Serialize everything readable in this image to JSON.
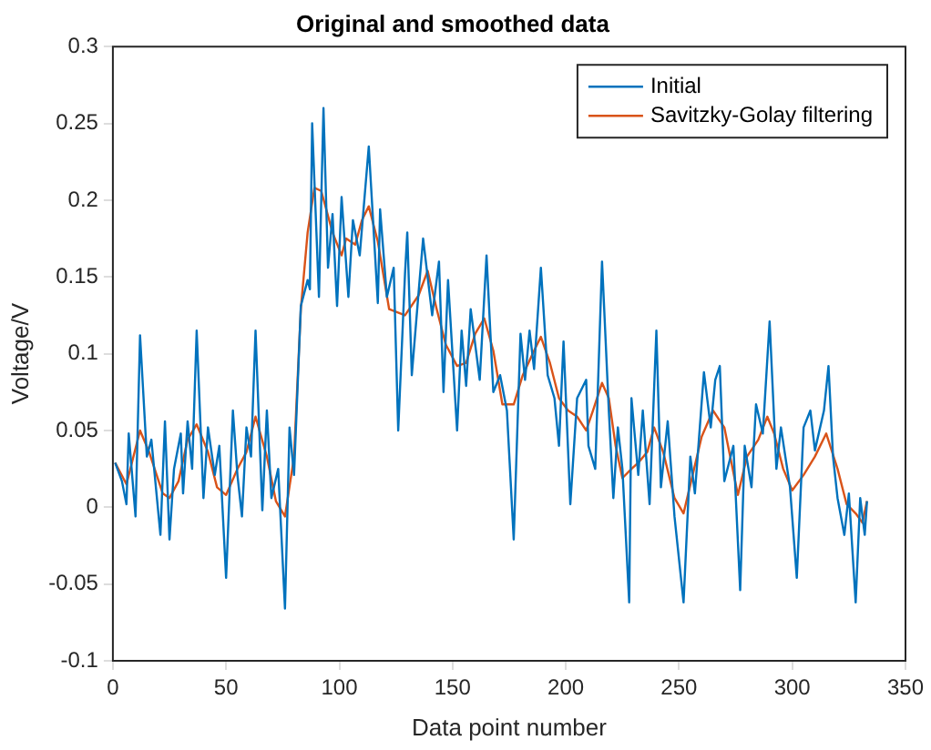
{
  "chart_data": {
    "type": "line",
    "title": "Original and smoothed data",
    "xlabel": "Data point number",
    "ylabel": "Voltage/V",
    "xlim": [
      0,
      350
    ],
    "xticks": [
      0,
      50,
      100,
      150,
      200,
      250,
      300,
      350
    ],
    "ylim": [
      -0.1,
      0.3
    ],
    "yticks": [
      -0.1,
      -0.05,
      0,
      0.05,
      0.1,
      0.15,
      0.2,
      0.25,
      0.3
    ],
    "grid": false,
    "legend": "top right",
    "marker": "none",
    "line_style": "solid",
    "series": [
      {
        "name": "Initial",
        "color": "#0072bd",
        "x": [
          1,
          4,
          6,
          7,
          10,
          12,
          15,
          17,
          21,
          23,
          25,
          27,
          30,
          31,
          33,
          35,
          37,
          40,
          42,
          45,
          47,
          50,
          53,
          55,
          57,
          59,
          61,
          63,
          66,
          68,
          70,
          73,
          76,
          78,
          80,
          83,
          86,
          87,
          88,
          91,
          93,
          95,
          97,
          99,
          101,
          104,
          106,
          109,
          113,
          117,
          118,
          121,
          124,
          126,
          129,
          130,
          132,
          135,
          137,
          141,
          144,
          146,
          148,
          152,
          154,
          156,
          158,
          162,
          165,
          168,
          171,
          174,
          177,
          180,
          182,
          184,
          186,
          189,
          192,
          195,
          197,
          199,
          202,
          205,
          209,
          210,
          213,
          216,
          219,
          221,
          223,
          225,
          228,
          229,
          232,
          234,
          237,
          240,
          242,
          245,
          248,
          252,
          255,
          257,
          261,
          264,
          266,
          268,
          270,
          274,
          277,
          279,
          282,
          284,
          287,
          290,
          293,
          295,
          299,
          302,
          305,
          308,
          310,
          314,
          316,
          318,
          320,
          323,
          325,
          328,
          330,
          332,
          333
        ],
        "values": [
          0.029,
          0.017,
          0.002,
          0.048,
          -0.006,
          0.112,
          0.033,
          0.044,
          -0.018,
          0.056,
          -0.021,
          0.025,
          0.048,
          0.009,
          0.056,
          0.025,
          0.115,
          0.006,
          0.052,
          0.021,
          0.04,
          -0.046,
          0.063,
          0.021,
          -0.006,
          0.052,
          0.033,
          0.115,
          -0.002,
          0.063,
          0.006,
          0.025,
          -0.066,
          0.052,
          0.021,
          0.131,
          0.148,
          0.142,
          0.25,
          0.137,
          0.26,
          0.156,
          0.191,
          0.131,
          0.202,
          0.137,
          0.187,
          0.164,
          0.235,
          0.133,
          0.194,
          0.137,
          0.156,
          0.05,
          0.152,
          0.179,
          0.086,
          0.14,
          0.175,
          0.125,
          0.16,
          0.075,
          0.148,
          0.05,
          0.115,
          0.079,
          0.129,
          0.083,
          0.164,
          0.075,
          0.086,
          0.063,
          -0.021,
          0.113,
          0.083,
          0.115,
          0.09,
          0.156,
          0.086,
          0.071,
          0.04,
          0.108,
          0.002,
          0.071,
          0.083,
          0.04,
          0.025,
          0.16,
          0.063,
          0.006,
          0.052,
          0.025,
          -0.062,
          0.071,
          0.021,
          0.063,
          0.002,
          0.115,
          0.013,
          0.056,
          -0.006,
          -0.062,
          0.033,
          0.009,
          0.088,
          0.052,
          0.083,
          0.092,
          0.017,
          0.04,
          -0.054,
          0.04,
          0.013,
          0.067,
          0.048,
          0.121,
          0.025,
          0.052,
          0.013,
          -0.046,
          0.052,
          0.063,
          0.037,
          0.063,
          0.092,
          0.033,
          0.006,
          -0.018,
          0.009,
          -0.062,
          0.006,
          -0.018,
          0.004
        ]
      },
      {
        "name": "Savitzky-Golay filtering",
        "color": "#d95319",
        "x": [
          1,
          6,
          12,
          16,
          22,
          25,
          29,
          33,
          37,
          42,
          46,
          50,
          55,
          59,
          63,
          68,
          72,
          76,
          80,
          83,
          86,
          89,
          92,
          97,
          101,
          103,
          107,
          110,
          113,
          117,
          122,
          129,
          135,
          139,
          143,
          147,
          152,
          156,
          160,
          164,
          168,
          172,
          177,
          181,
          186,
          189,
          193,
          197,
          201,
          205,
          209,
          212,
          216,
          219,
          222,
          225,
          229,
          232,
          236,
          239,
          243,
          248,
          252,
          256,
          260,
          265,
          270,
          276,
          280,
          285,
          289,
          292,
          296,
          300,
          305,
          310,
          315,
          320,
          324,
          328,
          331,
          333
        ],
        "values": [
          0.029,
          0.015,
          0.05,
          0.036,
          0.009,
          0.006,
          0.017,
          0.044,
          0.054,
          0.036,
          0.013,
          0.008,
          0.025,
          0.036,
          0.059,
          0.033,
          0.004,
          -0.006,
          0.033,
          0.129,
          0.179,
          0.208,
          0.206,
          0.179,
          0.164,
          0.175,
          0.171,
          0.187,
          0.196,
          0.173,
          0.129,
          0.125,
          0.138,
          0.154,
          0.129,
          0.106,
          0.092,
          0.094,
          0.113,
          0.123,
          0.102,
          0.067,
          0.067,
          0.086,
          0.102,
          0.111,
          0.094,
          0.071,
          0.063,
          0.059,
          0.05,
          0.063,
          0.081,
          0.071,
          0.04,
          0.019,
          0.025,
          0.029,
          0.036,
          0.052,
          0.036,
          0.006,
          -0.004,
          0.021,
          0.046,
          0.063,
          0.052,
          0.008,
          0.033,
          0.044,
          0.059,
          0.048,
          0.025,
          0.011,
          0.021,
          0.033,
          0.048,
          0.025,
          0.002,
          -0.004,
          -0.01,
          0.004
        ]
      }
    ]
  }
}
